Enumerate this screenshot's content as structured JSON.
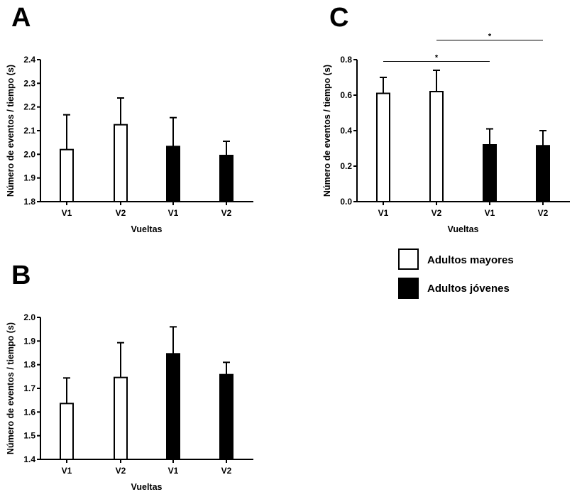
{
  "colors": {
    "adultos_mayores": "#ffffff",
    "adultos_jovenes": "#000000",
    "axis": "#000000"
  },
  "legend": {
    "items": [
      {
        "label": "Adultos mayores",
        "color": "#ffffff"
      },
      {
        "label": "Adultos jóvenes",
        "color": "#000000"
      }
    ]
  },
  "chart_data": [
    {
      "panel": "A",
      "type": "bar",
      "categories": [
        "V1",
        "V2",
        "V1",
        "V2"
      ],
      "groups": [
        "Adultos mayores",
        "Adultos mayores",
        "Adultos jóvenes",
        "Adultos jóvenes"
      ],
      "values": [
        2.02,
        2.125,
        2.033,
        1.995
      ],
      "error_upper": [
        0.147,
        0.113,
        0.122,
        0.06
      ],
      "xlabel": "Vueltas",
      "ylabel": "Número de eventos / tiempo (s)",
      "ylim": [
        1.8,
        2.4
      ],
      "yticks": [
        "1.8",
        "1.9",
        "2.0",
        "2.1",
        "2.2",
        "2.3",
        "2.4"
      ],
      "grid": false
    },
    {
      "panel": "B",
      "type": "bar",
      "categories": [
        "V1",
        "V2",
        "V1",
        "V2"
      ],
      "groups": [
        "Adultos mayores",
        "Adultos mayores",
        "Adultos jóvenes",
        "Adultos jóvenes"
      ],
      "values": [
        1.636,
        1.746,
        1.846,
        1.758
      ],
      "error_upper": [
        0.108,
        0.147,
        0.114,
        0.052
      ],
      "xlabel": "Vueltas",
      "ylabel": "Número de eventos / tiempo (s)",
      "ylim": [
        1.4,
        2.0
      ],
      "yticks": [
        "1.4",
        "1.5",
        "1.6",
        "1.7",
        "1.8",
        "1.9",
        "2.0"
      ],
      "grid": false
    },
    {
      "panel": "C",
      "type": "bar",
      "categories": [
        "V1",
        "V2",
        "V1",
        "V2"
      ],
      "groups": [
        "Adultos mayores",
        "Adultos mayores",
        "Adultos jóvenes",
        "Adultos jóvenes"
      ],
      "values": [
        0.61,
        0.62,
        0.32,
        0.315
      ],
      "error_upper": [
        0.09,
        0.12,
        0.09,
        0.085
      ],
      "xlabel": "Vueltas",
      "ylabel": "Número de eventos / tiempo (s)",
      "ylim": [
        0.0,
        0.8
      ],
      "yticks": [
        "0.0",
        "0.2",
        "0.4",
        "0.6",
        "0.8"
      ],
      "grid": false,
      "significance": [
        {
          "from": 0,
          "to": 2,
          "label": "*",
          "level": 0.79
        },
        {
          "from": 1,
          "to": 3,
          "label": "*",
          "level": 0.91
        }
      ]
    }
  ]
}
